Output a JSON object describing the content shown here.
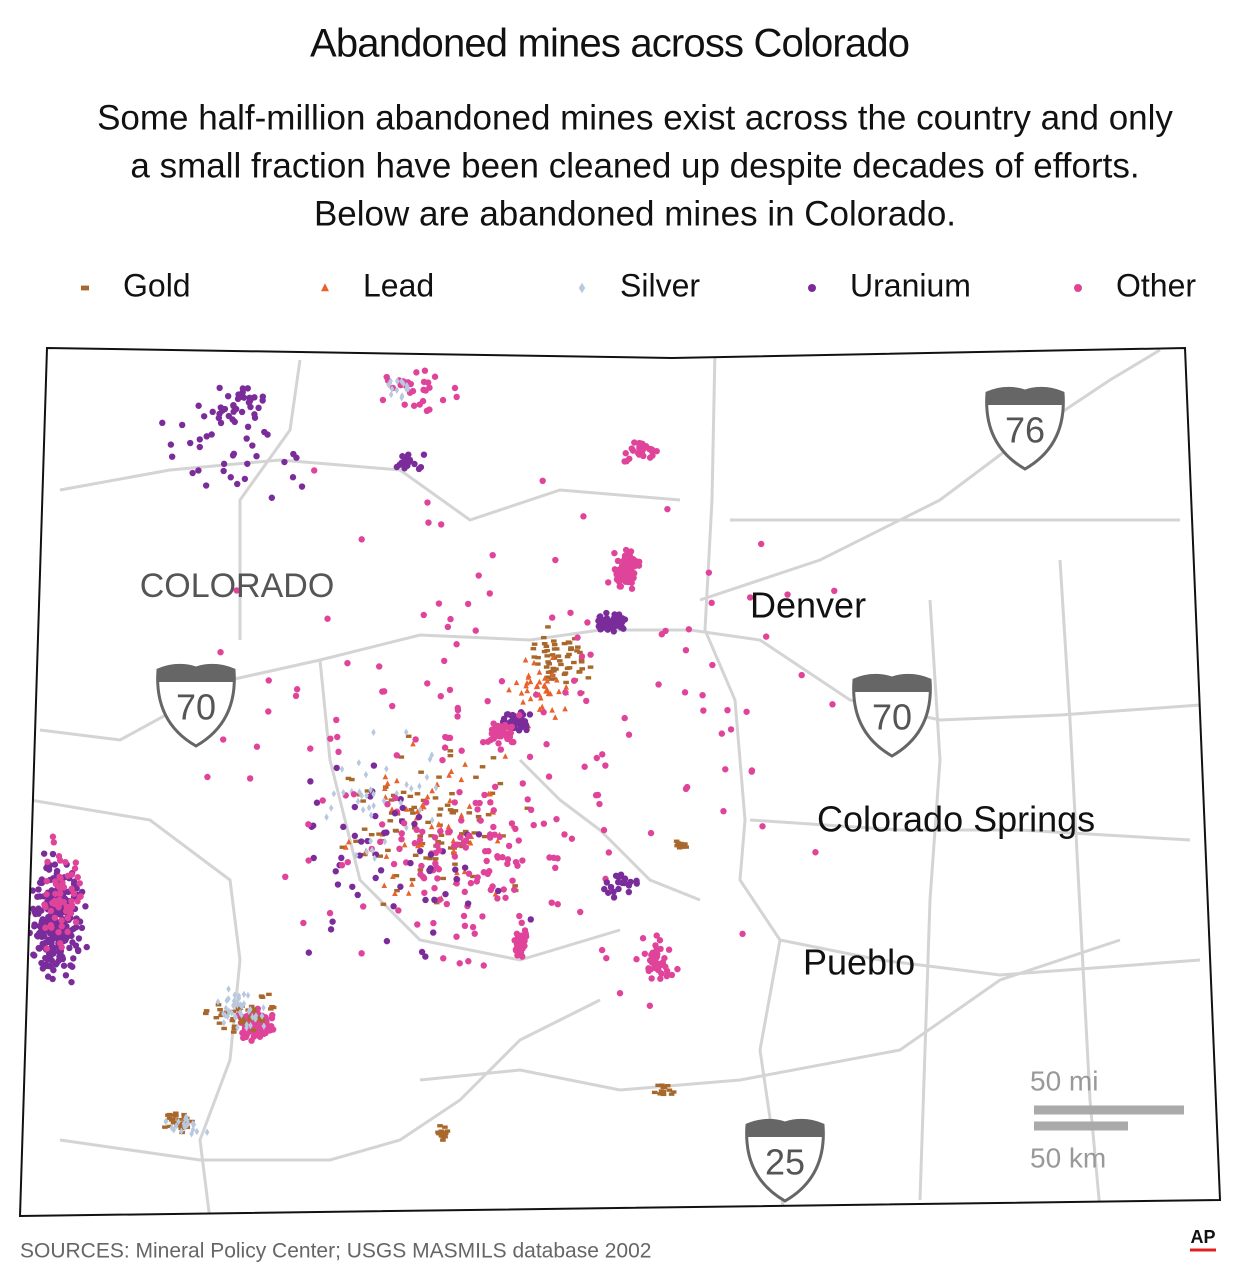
{
  "title": "Abandoned mines across Colorado",
  "subtitle": [
    "Some half-million abandoned mines exist across the country and only",
    "a small fraction have been cleaned up despite decades of efforts.",
    "Below are abandoned mines in Colorado."
  ],
  "legend": [
    {
      "label": "Gold",
      "color": "#a8682c"
    },
    {
      "label": "Lead",
      "color": "#e8622a"
    },
    {
      "label": "Silver",
      "color": "#b7c8e0"
    },
    {
      "label": "Uranium",
      "color": "#7a2c9a"
    },
    {
      "label": "Other",
      "color": "#e0449a"
    }
  ],
  "map": {
    "state_label": "COLORADO",
    "cities": [
      "Denver",
      "Colorado Springs",
      "Pueblo"
    ],
    "interstates": [
      "76",
      "70",
      "70",
      "25"
    ],
    "scale": [
      "50 mi",
      "50 km"
    ]
  },
  "footer": {
    "source": "SOURCES: Mineral Policy Center; USGS MASMILS database 2002",
    "credit": "AP"
  }
}
